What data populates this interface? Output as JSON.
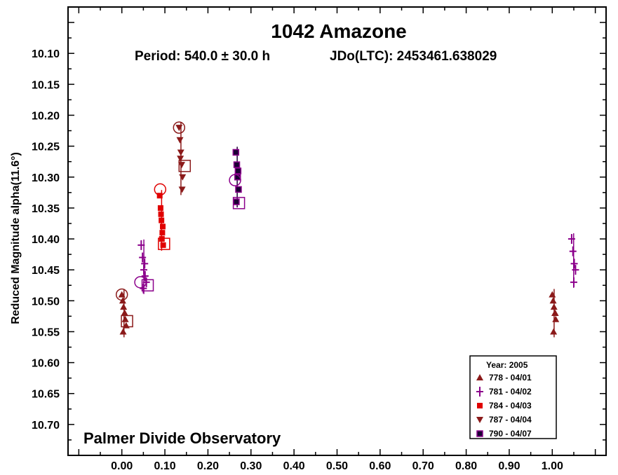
{
  "chart_data": {
    "type": "scatter",
    "title": "1042 Amazone",
    "subtitle_period": "Period: 540.0 ± 30.0 h",
    "subtitle_epoch": "JDo(LTC): 2453461.638029",
    "ylabel": "Reduced Magnitude alpha(11.6°)",
    "xlabel": "",
    "watermark": "Palmer Divide Observatory",
    "xlim": [
      -0.125,
      1.125
    ],
    "ylim": [
      10.75,
      10.025
    ],
    "y_reversed": true,
    "xticks": [
      "0.00",
      "0.10",
      "0.20",
      "0.30",
      "0.40",
      "0.50",
      "0.60",
      "0.70",
      "0.80",
      "0.90",
      "1.00"
    ],
    "yticks": [
      "10.10",
      "10.15",
      "10.20",
      "10.25",
      "10.30",
      "10.35",
      "10.40",
      "10.45",
      "10.50",
      "10.55",
      "10.60",
      "10.65",
      "10.70"
    ],
    "legend_title": "Year: 2005",
    "legend_position": "bottom-right",
    "series": [
      {
        "name": "778 - 04/01",
        "color": "#8b1a1a",
        "marker": "triangle-up",
        "x": [
          0.0,
          0.002,
          0.004,
          0.006,
          0.008,
          0.01,
          0.003,
          0.007,
          1.0,
          1.002,
          1.004,
          1.006,
          1.008,
          1.003,
          1.007
        ],
        "y": [
          10.49,
          10.5,
          10.51,
          10.52,
          10.53,
          10.54,
          10.55,
          10.52,
          10.49,
          10.5,
          10.51,
          10.52,
          10.53,
          10.55,
          10.52
        ],
        "open_circle": {
          "x": 0.0,
          "y": 10.49
        },
        "open_square": {
          "x": 0.012,
          "y": 10.533
        }
      },
      {
        "name": "781 - 04/02",
        "color": "#8b008b",
        "marker": "plus",
        "x": [
          0.045,
          0.048,
          0.051,
          0.054,
          0.057,
          0.05,
          0.053,
          1.045,
          1.048,
          1.051,
          1.054,
          1.05
        ],
        "y": [
          10.41,
          10.43,
          10.45,
          10.46,
          10.47,
          10.48,
          10.44,
          10.4,
          10.42,
          10.44,
          10.45,
          10.47
        ],
        "open_circle": {
          "x": 0.043,
          "y": 10.47
        },
        "open_square": {
          "x": 0.06,
          "y": 10.475
        }
      },
      {
        "name": "784 - 04/03",
        "color": "#e00000",
        "marker": "square",
        "x": [
          0.088,
          0.09,
          0.092,
          0.094,
          0.096,
          0.091,
          0.093,
          0.095
        ],
        "y": [
          10.33,
          10.35,
          10.37,
          10.39,
          10.41,
          10.36,
          10.4,
          10.38
        ],
        "open_circle": {
          "x": 0.089,
          "y": 10.32
        },
        "open_square": {
          "x": 0.098,
          "y": 10.408
        }
      },
      {
        "name": "787 - 04/04",
        "color": "#8b1a1a",
        "marker": "triangle-down",
        "x": [
          0.133,
          0.135,
          0.137,
          0.139,
          0.141,
          0.136,
          0.14
        ],
        "y": [
          10.22,
          10.24,
          10.26,
          10.28,
          10.3,
          10.27,
          10.32
        ],
        "open_circle": {
          "x": 0.133,
          "y": 10.22
        },
        "open_square": {
          "x": 0.146,
          "y": 10.282
        }
      },
      {
        "name": "790 - 04/07",
        "color": "#1a0033",
        "fill2": "#8b008b",
        "marker": "square",
        "x": [
          0.265,
          0.267,
          0.269,
          0.271,
          0.266,
          0.27
        ],
        "y": [
          10.26,
          10.28,
          10.3,
          10.32,
          10.34,
          10.29
        ],
        "open_circle": {
          "x": 0.263,
          "y": 10.305
        },
        "open_square": {
          "x": 0.272,
          "y": 10.342
        }
      }
    ]
  }
}
